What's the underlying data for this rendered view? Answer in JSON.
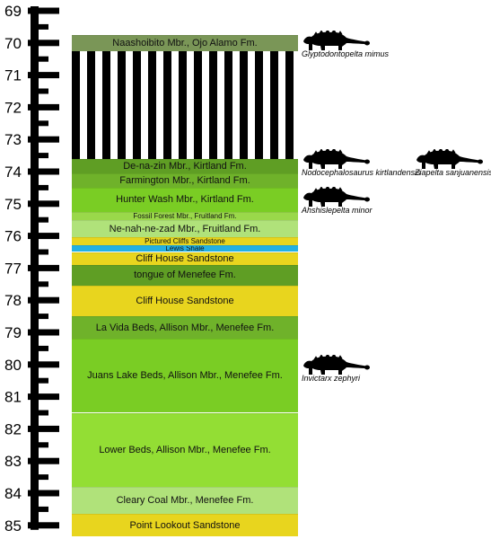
{
  "axis": {
    "ticks": [
      "69",
      "70",
      "71",
      "72",
      "73",
      "74",
      "75",
      "76",
      "77",
      "78",
      "79",
      "80",
      "81",
      "82",
      "83",
      "84",
      "85"
    ]
  },
  "units": [
    {
      "label": "Naashoibito Mbr., Ojo Alamo Fm.",
      "top": 69.75,
      "base": 70.25,
      "color": "#7a9657"
    },
    {
      "label": "",
      "top": 70.25,
      "base": 73.6,
      "hatched": true
    },
    {
      "label": "De-na-zin Mbr., Kirtland Fm.",
      "top": 73.6,
      "base": 74.05,
      "color": "#5f9e24"
    },
    {
      "label": "Farmington Mbr., Kirtland Fm.",
      "top": 74.05,
      "base": 74.5,
      "color": "#6fb22a"
    },
    {
      "label": "Hunter Wash Mbr., Kirtland Fm.",
      "top": 74.5,
      "base": 75.25,
      "color": "#7acd24"
    },
    {
      "label": "Fossil Forest Mbr., Fruitland Fm.",
      "top": 75.25,
      "base": 75.5,
      "color": "#9ad84a"
    },
    {
      "label": "Ne-nah-ne-zad Mbr., Fruitland Fm.",
      "top": 75.5,
      "base": 76.05,
      "color": "#b0e27a"
    },
    {
      "label": "Pictured Cliffs Sandstone",
      "top": 76.05,
      "base": 76.3,
      "color": "#e8d51e"
    },
    {
      "label": "Lewis Shale",
      "top": 76.3,
      "base": 76.5,
      "color": "#23b0e2"
    },
    {
      "label": "Cliff House Sandstone",
      "top": 76.5,
      "base": 76.9,
      "color": "#e8d51e"
    },
    {
      "label": "tongue of Menefee Fm.",
      "top": 76.9,
      "base": 77.55,
      "color": "#5f9e24"
    },
    {
      "label": "Cliff House Sandstone",
      "top": 77.55,
      "base": 78.5,
      "color": "#e8d51e"
    },
    {
      "label": "La Vida Beds, Allison Mbr., Menefee Fm.",
      "top": 78.5,
      "base": 79.2,
      "color": "#6fb22a"
    },
    {
      "label": "Juans Lake Beds, Allison Mbr., Menefee Fm.",
      "top": 79.2,
      "base": 81.5,
      "color": "#7acd24"
    },
    {
      "label": "Lower Beds, Allison Mbr., Menefee Fm.",
      "top": 81.5,
      "base": 83.8,
      "color": "#93de34"
    },
    {
      "label": "Cleary Coal Mbr., Menefee Fm.",
      "top": 83.8,
      "base": 84.65,
      "color": "#b0e27a"
    },
    {
      "label": "Point Lookout Sandstone",
      "top": 84.65,
      "base": 85.35,
      "color": "#e8d51e"
    }
  ],
  "taxa": [
    {
      "name": "Glyptodontopelta mimus",
      "icon": "ankylosaur-silhouette-icon"
    },
    {
      "name": "Nodocephalosaurus kirtlandensis",
      "icon": "ankylosaur-silhouette-icon"
    },
    {
      "name": "Ziapelta sanjuanensis",
      "icon": "ankylosaur-silhouette-icon"
    },
    {
      "name": "Ahshislepelta minor",
      "icon": "ankylosaur-silhouette-icon"
    },
    {
      "name": "Invictarx zephyri",
      "icon": "ankylosaur-silhouette-icon"
    }
  ]
}
